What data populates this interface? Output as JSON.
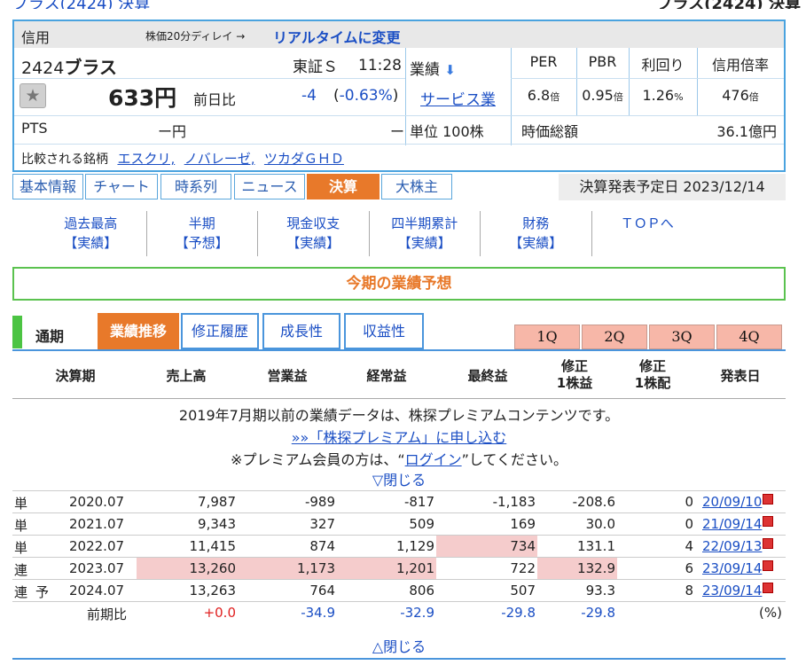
{
  "quote": {
    "shinyo": "信用",
    "delay_note": "株価20分ディレイ →",
    "realtime_link": "リアルタイムに変更",
    "code": "2424",
    "name": "ブラス",
    "market": "東証Ｓ",
    "time": "11:28",
    "gyoseki_label": "業績",
    "price": "633円",
    "prev_label": "前日比",
    "change": "-4",
    "change_pct": "-0.63%",
    "sector": "サービス業",
    "pts_label": "PTS",
    "pts_value": "ー円",
    "pts_change": "ー",
    "unit": "単位 100株",
    "market_cap_label": "時価総額",
    "market_cap": "36.1億円",
    "compare_label": "比較される銘柄",
    "compare": [
      "エスクリ,",
      "ノバレーゼ,",
      "ツカダＧＨＤ"
    ],
    "metrics": [
      {
        "label": "PER",
        "value": "6.8",
        "unit": "倍"
      },
      {
        "label": "PBR",
        "value": "0.95",
        "unit": "倍"
      },
      {
        "label": "利回り",
        "value": "1.26",
        "unit": "%"
      },
      {
        "label": "信用倍率",
        "value": "476",
        "unit": "倍"
      }
    ]
  },
  "tabs": [
    "基本情報",
    "チャート",
    "時系列",
    "ニュース",
    "決算",
    "大株主"
  ],
  "kessan_date": "決算発表予定日  2023/12/14",
  "submenu": [
    {
      "l1": "過去最高",
      "l2": "【実績】"
    },
    {
      "l1": "半期",
      "l2": "【予想】"
    },
    {
      "l1": "現金収支",
      "l2": "【実績】"
    },
    {
      "l1": "四半期累計",
      "l2": "【実績】"
    },
    {
      "l1": "財務",
      "l2": "【実績】"
    },
    {
      "l1": "ＴＯＰへ",
      "l2": ""
    }
  ],
  "section_title": "今期の業績予想",
  "period_label": "通期",
  "period_tabs": [
    "業績推移",
    "修正履歴",
    "成長性",
    "収益性"
  ],
  "quarter_tabs": [
    "1Q",
    "2Q",
    "3Q",
    "4Q"
  ],
  "table_headers": [
    "決算期",
    "売上高",
    "営業益",
    "経常益",
    "最終益",
    "修正\n1株益",
    "修正\n1株配",
    "発表日"
  ],
  "premium": {
    "line1": "2019年7月期以前の業績データは、株探プレミアムコンテンツです。",
    "link": "»»「株探プレミアム」に申し込む",
    "line3a": "※プレミアム会員の方は、“",
    "login": "ログイン",
    "line3b": "”してください。",
    "close": "▽閉じる"
  },
  "rows": [
    {
      "type": "単",
      "yoso": "",
      "period": "2020.07",
      "sales": "7,987",
      "op": "-989",
      "ord": "-817",
      "net": "-1,183",
      "eps": "-208.6",
      "div": "0",
      "date": "20/09/10",
      "hl": []
    },
    {
      "type": "単",
      "yoso": "",
      "period": "2021.07",
      "sales": "9,343",
      "op": "327",
      "ord": "509",
      "net": "169",
      "eps": "30.0",
      "div": "0",
      "date": "21/09/14",
      "hl": []
    },
    {
      "type": "単",
      "yoso": "",
      "period": "2022.07",
      "sales": "11,415",
      "op": "874",
      "ord": "1,129",
      "net": "734",
      "eps": "131.1",
      "div": "4",
      "date": "22/09/13",
      "hl": [
        "net"
      ]
    },
    {
      "type": "連",
      "yoso": "",
      "period": "2023.07",
      "sales": "13,260",
      "op": "1,173",
      "ord": "1,201",
      "net": "722",
      "eps": "132.9",
      "div": "6",
      "date": "23/09/14",
      "hl": [
        "sales",
        "op",
        "ord",
        "eps"
      ]
    },
    {
      "type": "連",
      "yoso": "予",
      "period": "2024.07",
      "sales": "13,263",
      "op": "764",
      "ord": "806",
      "net": "507",
      "eps": "93.3",
      "div": "8",
      "date": "23/09/14",
      "hl": []
    }
  ],
  "yoy": {
    "label": "前期比",
    "sales": "+0.0",
    "op": "-34.9",
    "ord": "-32.9",
    "net": "-29.8",
    "eps": "-29.8",
    "unit": "(%)"
  },
  "close_bottom": "△閉じる",
  "colors": {
    "accent": "#e8792a",
    "link": "#1a4ec4",
    "highlight": "#f5cccc",
    "green": "#4cc443"
  }
}
